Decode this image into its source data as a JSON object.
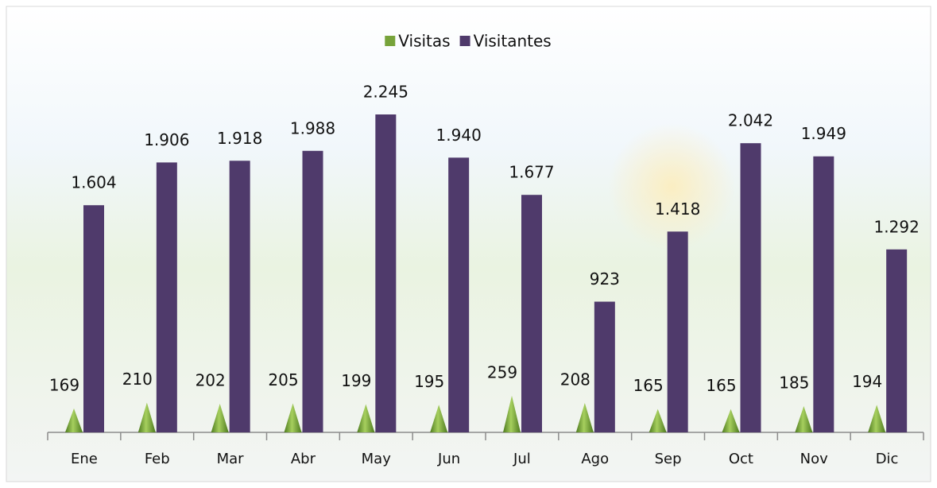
{
  "chart_data": {
    "type": "bar",
    "categories": [
      "Ene",
      "Feb",
      "Mar",
      "Abr",
      "May",
      "Jun",
      "Jul",
      "Ago",
      "Sep",
      "Oct",
      "Nov",
      "Dic"
    ],
    "series": [
      {
        "name": "Visitas",
        "color": "#77a33a",
        "values": [
          169,
          210,
          202,
          205,
          199,
          195,
          259,
          208,
          165,
          165,
          185,
          194
        ]
      },
      {
        "name": "Visitantes",
        "color": "#4f3a6b",
        "values": [
          1604,
          1906,
          1918,
          1988,
          2245,
          1940,
          1677,
          923,
          1418,
          2042,
          1949,
          1292
        ],
        "value_labels": [
          "1.604",
          "1.906",
          "1.918",
          "1.988",
          "2.245",
          "1.940",
          "1.677",
          "923",
          "1.418",
          "2.042",
          "1.949",
          "1.292"
        ]
      }
    ],
    "legend": "top"
  }
}
